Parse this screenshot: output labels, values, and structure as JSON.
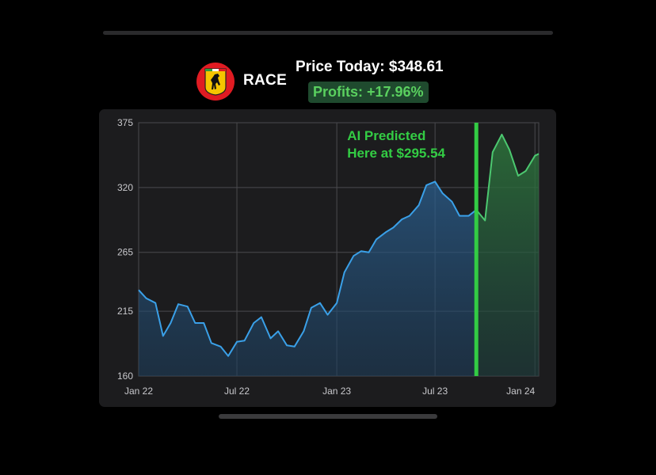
{
  "header": {
    "ticker": "RACE",
    "price_label": "Price Today: $348.61",
    "profits_label": "Profits: +17.96%",
    "logo_icon": "prancing-horse-logo-icon"
  },
  "prediction": {
    "line1": "AI Predicted",
    "line2": "Here at $295.54",
    "date": "2023-09-15",
    "price": 295.54
  },
  "colors": {
    "accent_green": "#33cc44",
    "line_blue": "#3aa0e8",
    "line_green": "#4cc870",
    "logo_red": "#e01b22"
  },
  "chart_data": {
    "type": "line",
    "xlabel": "",
    "ylabel": "",
    "ylim": [
      160,
      375
    ],
    "yticks": [
      160,
      215,
      265,
      320,
      375
    ],
    "xlim": [
      "2022-01-01",
      "2024-01-08"
    ],
    "xticks": [
      {
        "label": "Jan 22",
        "date": "2022-01-01"
      },
      {
        "label": "Jul 22",
        "date": "2022-07-01"
      },
      {
        "label": "Jan 23",
        "date": "2023-01-01"
      },
      {
        "label": "Jul 23",
        "date": "2023-07-01"
      },
      {
        "label": "Jan 24",
        "date": "2024-01-01"
      }
    ],
    "grid": true,
    "series": [
      {
        "x": [
          "2022-01-01",
          "2022-01-15",
          "2022-02-01",
          "2022-02-15",
          "2022-03-01",
          "2022-03-15",
          "2022-04-01",
          "2022-04-15",
          "2022-05-01",
          "2022-05-15",
          "2022-06-01",
          "2022-06-15",
          "2022-07-01",
          "2022-07-15",
          "2022-08-01",
          "2022-08-15",
          "2022-09-01",
          "2022-09-15",
          "2022-10-01",
          "2022-10-15",
          "2022-11-01",
          "2022-11-15",
          "2022-12-01",
          "2022-12-15",
          "2023-01-01",
          "2023-01-15",
          "2023-02-01",
          "2023-02-15",
          "2023-03-01",
          "2023-03-15",
          "2023-04-01",
          "2023-04-15",
          "2023-05-01",
          "2023-05-15",
          "2023-06-01",
          "2023-06-15",
          "2023-07-01",
          "2023-07-15",
          "2023-08-01",
          "2023-08-15",
          "2023-09-01",
          "2023-09-15",
          "2023-10-01",
          "2023-10-15",
          "2023-11-01",
          "2023-11-15",
          "2023-12-01",
          "2023-12-15",
          "2024-01-01",
          "2024-01-08"
        ],
        "y": [
          233,
          226,
          222,
          194,
          205,
          221,
          219,
          205,
          205,
          188,
          185,
          177,
          189,
          190,
          205,
          210,
          192,
          198,
          186,
          185,
          198,
          218,
          222,
          212,
          222,
          248,
          262,
          266,
          265,
          276,
          282,
          286,
          293,
          296,
          305,
          322,
          325,
          315,
          308,
          296,
          296,
          301,
          292,
          350,
          365,
          352,
          330,
          334,
          347,
          348.61
        ]
      }
    ]
  }
}
